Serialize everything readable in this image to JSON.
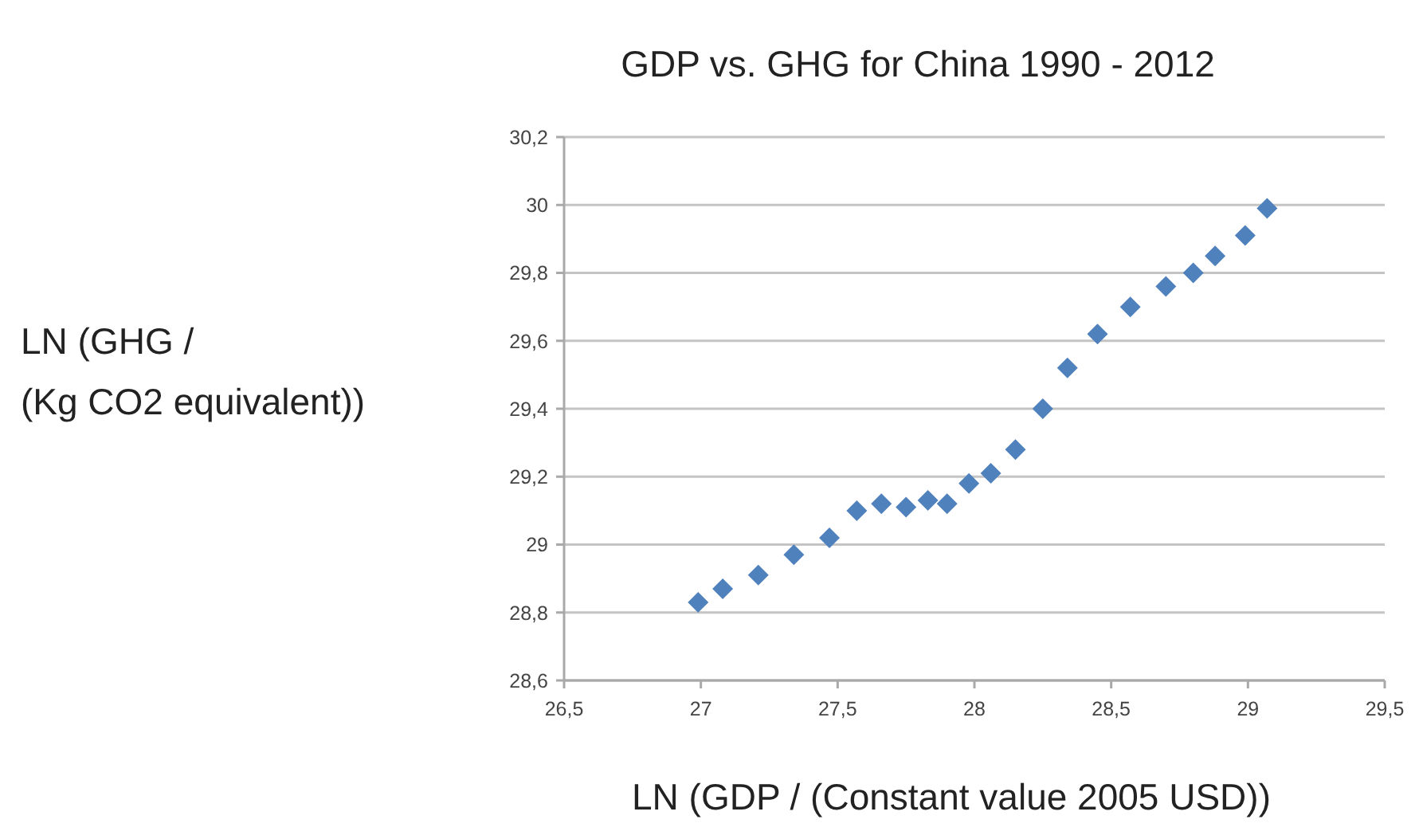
{
  "chart_data": {
    "type": "scatter",
    "title": "GDP vs. GHG for China 1990 - 2012",
    "xlabel": "LN (GDP / (Constant value 2005 USD))",
    "ylabel": "LN (GHG /\n(Kg CO2 equivalent))",
    "x": [
      26.99,
      27.08,
      27.21,
      27.34,
      27.47,
      27.57,
      27.66,
      27.75,
      27.83,
      27.9,
      27.98,
      28.06,
      28.15,
      28.25,
      28.34,
      28.45,
      28.57,
      28.7,
      28.8,
      28.88,
      28.99,
      29.07
    ],
    "series": [
      {
        "color": "#4f81bd",
        "values": [
          28.83,
          28.87,
          28.91,
          28.97,
          29.02,
          29.1,
          29.12,
          29.11,
          29.13,
          29.12,
          29.18,
          29.21,
          29.28,
          29.4,
          29.52,
          29.62,
          29.7,
          29.76,
          29.8,
          29.85,
          29.91,
          29.99
        ]
      }
    ],
    "xlim": [
      26.5,
      29.5
    ],
    "xticks": [
      {
        "value": 26.5,
        "label": "26,5"
      },
      27,
      {
        "value": 27.5,
        "label": "27,5"
      },
      28,
      {
        "value": 28.5,
        "label": "28,5"
      },
      29,
      {
        "value": 29.5,
        "label": "29,5"
      }
    ],
    "ylim": [
      28.6,
      30.2
    ],
    "yticks": [
      {
        "value": 28.6,
        "label": "28,6"
      },
      {
        "value": 28.8,
        "label": "28,8"
      },
      29,
      {
        "value": 29.2,
        "label": "29,2"
      },
      {
        "value": 29.4,
        "label": "29,4"
      },
      {
        "value": 29.6,
        "label": "29,6"
      },
      {
        "value": 29.8,
        "label": "29,8"
      },
      30,
      {
        "value": 30.2,
        "label": "30,2"
      }
    ],
    "grid": "y",
    "marker": "diamond"
  }
}
